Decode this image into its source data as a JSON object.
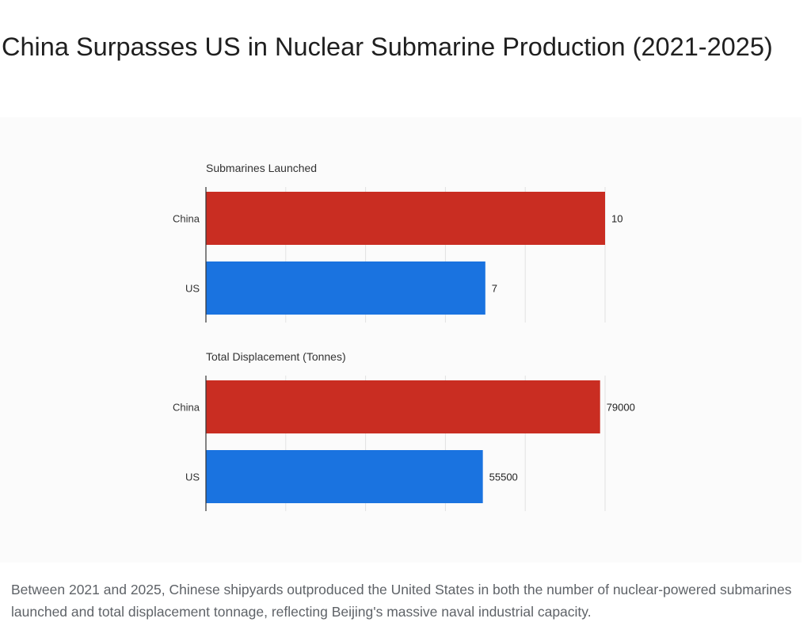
{
  "title": "China Surpasses US in Nuclear Submarine Production (2021-2025)",
  "caption": "Between 2021 and 2025, Chinese shipyards outproduced the United States in both the number of nuclear-powered submarines launched and total displacement tonnage, reflecting Beijing's massive naval industrial capacity.",
  "colors": {
    "China": "#c92d22",
    "US": "#1a73e0"
  },
  "chart_data": [
    {
      "type": "bar",
      "orientation": "horizontal",
      "title": "Submarines Launched",
      "categories": [
        "China",
        "US"
      ],
      "values": [
        10,
        7
      ],
      "xlim": [
        0,
        10
      ],
      "grid": true
    },
    {
      "type": "bar",
      "orientation": "horizontal",
      "title": "Total Displacement (Tonnes)",
      "categories": [
        "China",
        "US"
      ],
      "values": [
        79000,
        55500
      ],
      "xlim": [
        0,
        80000
      ],
      "grid": true
    }
  ]
}
